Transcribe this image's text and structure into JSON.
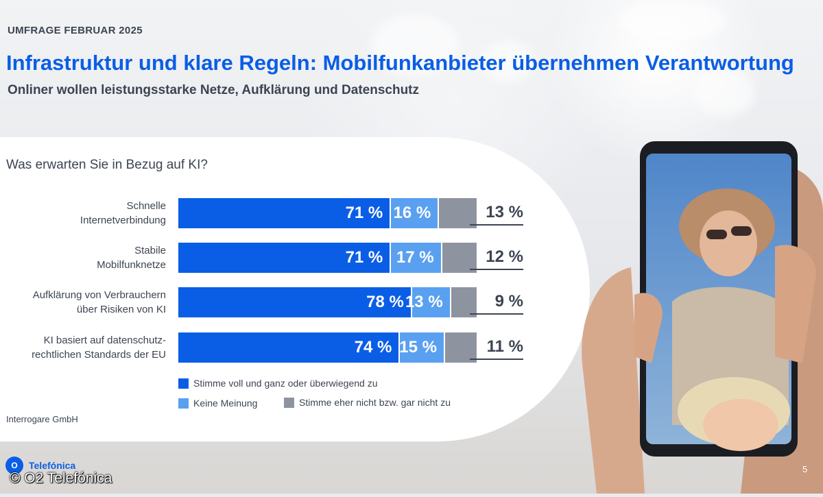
{
  "header": {
    "kicker": "UMFRAGE FEBRUAR 2025",
    "title": "Infrastruktur und klare Regeln: Mobilfunkanbieter übernehmen Verantwortung",
    "subtitle": "Onliner wollen leistungsstarke Netze, Aufklärung und Datenschutz"
  },
  "colors": {
    "agree": "#0a5ee6",
    "neutral": "#5aa0f0",
    "disagree": "#8e949f",
    "title": "#0a5ee6",
    "text": "#3c4452"
  },
  "chart_data": {
    "type": "bar",
    "title": "Was erwarten Sie in Bezug auf KI?",
    "categories": [
      "Schnelle Internetverbindung",
      "Stabile Mobilfunknetze",
      "Aufklärung von Verbrauchern über Risiken von KI",
      "KI basiert auf datenschutz-rechtlichen Standards der EU"
    ],
    "category_lines": [
      [
        "Schnelle",
        "Internetverbindung"
      ],
      [
        "Stabile",
        "Mobilfunknetze"
      ],
      [
        "Aufklärung von Verbrauchern",
        "über Risiken von KI"
      ],
      [
        "KI basiert auf datenschutz-",
        "rechtlichen Standards der EU"
      ]
    ],
    "series": [
      {
        "name": "Stimme voll und ganz oder überwiegend zu",
        "values": [
          71,
          71,
          78,
          74
        ],
        "labels": [
          "71 %",
          "71 %",
          "78 %",
          "74 %"
        ]
      },
      {
        "name": "Keine Meinung",
        "values": [
          16,
          17,
          13,
          15
        ],
        "labels": [
          "16 %",
          "17 %",
          "13 %",
          "15 %"
        ]
      },
      {
        "name": "Stimme eher nicht bzw. gar nicht zu",
        "values": [
          13,
          12,
          9,
          11
        ],
        "labels": [
          "13 %",
          "12 %",
          "9 %",
          "11 %"
        ]
      }
    ],
    "unit": "%",
    "stacked": true,
    "legend_position": "bottom"
  },
  "source": "Interrogare GmbH",
  "brand": {
    "logo_letter": "O",
    "logo_text": "Telefónica"
  },
  "copyright": "© O2 Telefónica",
  "page_number": "5"
}
